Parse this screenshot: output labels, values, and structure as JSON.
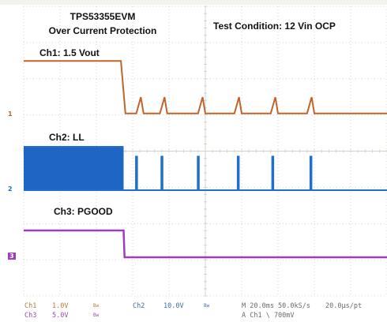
{
  "annotations": {
    "title_line1": "TPS53355EVM",
    "title_line2": "Over Current Protection",
    "test_condition": "Test Condition: 12 Vin OCP",
    "ch1_label": "Ch1: 1.5 Vout",
    "ch2_label": "Ch2: LL",
    "ch3_label": "Ch3: PGOOD"
  },
  "markers": {
    "ch1": "1",
    "ch2": "2",
    "ch3": "3"
  },
  "status_bar": {
    "ch1_name": "Ch1",
    "ch1_scale": "1.0V",
    "ch1_bw": "Bw",
    "ch2_name": "Ch2",
    "ch2_scale": "10.0V",
    "ch2_bw": "Bw",
    "ch3_name": "Ch3",
    "ch3_scale": "5.0V",
    "ch3_bw": "Bw",
    "timebase": "M 20.0ms 50.0kS/s",
    "resolution": "20.0μs/pt",
    "trigger": "A Ch1 \\ 700mV"
  },
  "colors": {
    "ch1": "#c0642a",
    "ch2": "#1f6fcf",
    "ch2_fill": "#1f66c4",
    "ch3": "#9c3fb8",
    "grid": "#d4d4cc"
  },
  "chart_data": {
    "type": "line",
    "title": "TPS53355EVM Over Current Protection",
    "xlabel": "",
    "ylabel": "",
    "grid": true,
    "x_unit": "ms",
    "xlim": [
      0,
      200
    ],
    "divisions": {
      "x": 10,
      "y": 8
    },
    "series": [
      {
        "name": "Ch1: 1.5 Vout",
        "scale": "1.0V/div",
        "values": [
          [
            0,
            1.5
          ],
          [
            53.5,
            1.5
          ],
          [
            56,
            0.05
          ],
          [
            62,
            0.05
          ],
          [
            64.5,
            0.5
          ],
          [
            66,
            0.05
          ],
          [
            75,
            0.05
          ],
          [
            77.5,
            0.5
          ],
          [
            79,
            0.05
          ],
          [
            96,
            0.05
          ],
          [
            98.5,
            0.5
          ],
          [
            100,
            0.05
          ],
          [
            116,
            0.05
          ],
          [
            118.5,
            0.5
          ],
          [
            120,
            0.05
          ],
          [
            136,
            0.05
          ],
          [
            138.5,
            0.5
          ],
          [
            140,
            0.05
          ],
          [
            156,
            0.05
          ],
          [
            158.5,
            0.5
          ],
          [
            160,
            0.05
          ],
          [
            200,
            0.05
          ]
        ]
      },
      {
        "name": "Ch2: LL",
        "scale": "10.0V/div",
        "switching_until": 55,
        "switching_high": 12,
        "bursts": [
          62,
          76,
          96,
          118,
          137,
          158
        ],
        "burst_high": 9.5,
        "values": [
          [
            0,
            0
          ],
          [
            55,
            0
          ],
          [
            200,
            0
          ]
        ]
      },
      {
        "name": "Ch3: PGOOD",
        "scale": "5.0V/div",
        "values": [
          [
            0,
            5.0
          ],
          [
            55,
            5.0
          ],
          [
            55.5,
            0.0
          ],
          [
            200,
            0.0
          ]
        ]
      }
    ]
  }
}
